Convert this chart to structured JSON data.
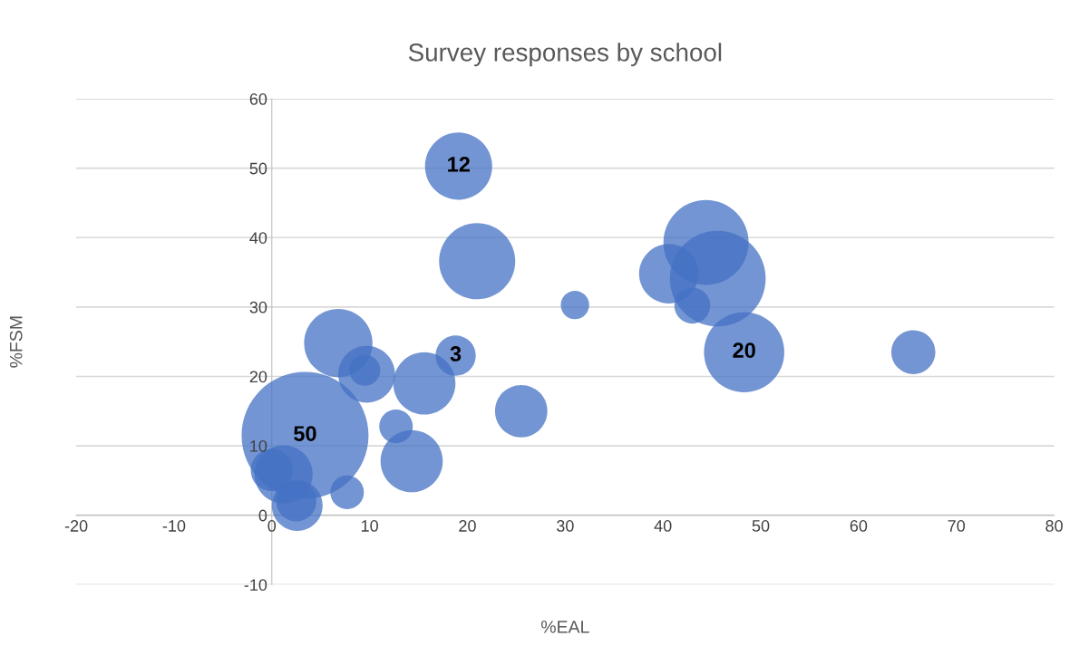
{
  "chart_data": {
    "type": "bubble",
    "title": "Survey responses by school",
    "xlabel": "%EAL",
    "ylabel": "%FSM",
    "xlim": [
      -20,
      80
    ],
    "xticks": [
      -20,
      -10,
      0,
      10,
      20,
      30,
      40,
      50,
      60,
      70,
      80
    ],
    "ylim": [
      -10,
      60
    ],
    "yticks": [
      -10,
      0,
      10,
      20,
      30,
      40,
      50,
      60
    ],
    "grid": "y",
    "series": [
      {
        "color": "#4472c4",
        "x": [
          3.4,
          6.8,
          9.7,
          9.5,
          15.6,
          18.8,
          12.7,
          14.3,
          25.5,
          7.7,
          2.6,
          2.5,
          1.2,
          0.0,
          31.0,
          44.4,
          45.6,
          40.6,
          43.0,
          48.3,
          65.6,
          19.1,
          21.0
        ],
        "values": [
          11.5,
          24.8,
          20.3,
          20.9,
          19.0,
          23.0,
          12.8,
          7.8,
          15.0,
          3.3,
          1.4,
          2.0,
          5.9,
          6.5,
          30.3,
          39.3,
          34.1,
          34.8,
          30.2,
          23.5,
          23.5,
          50.3,
          36.6
        ],
        "sizes": [
          1,
          0.29,
          0.2,
          0.06,
          0.24,
          0.1,
          0.07,
          0.24,
          0.17,
          0.07,
          0.16,
          0.1,
          0.21,
          0.11,
          0.05,
          0.45,
          0.57,
          0.22,
          0.08,
          0.4,
          0.12,
          0.28,
          0.36
        ]
      }
    ],
    "annotations": [
      {
        "text": "50",
        "x": 3.4,
        "y": 11.5
      },
      {
        "text": "3",
        "x": 18.8,
        "y": 23.0
      },
      {
        "text": "20",
        "x": 48.3,
        "y": 23.5
      },
      {
        "text": "12",
        "x": 19.1,
        "y": 50.3
      }
    ]
  }
}
